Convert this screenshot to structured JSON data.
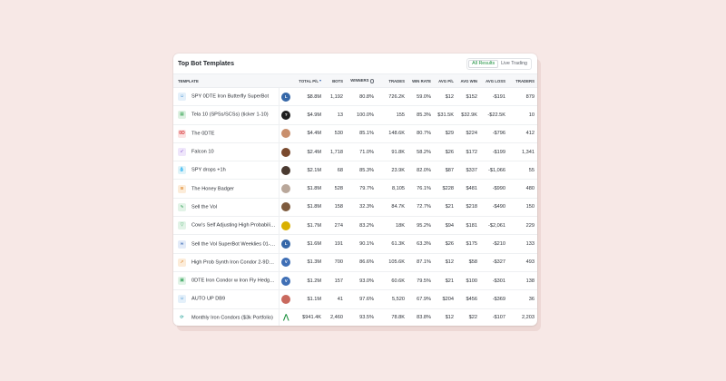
{
  "card": {
    "title": "Top Bot Templates",
    "toggle": {
      "all_results": "All Results",
      "live_trading": "Live Trading"
    }
  },
  "columns": {
    "template": "TEMPLATE",
    "total_pl": "TOTAL P/L",
    "bots": "BOTS",
    "winners": "WINNERS",
    "trades": "TRADES",
    "win_rate": "WIN RATE",
    "avg_pl": "AVG P/L",
    "avg_win": "AVG WIN",
    "avg_loss": "AVG LOSS",
    "traders": "TRADERS"
  },
  "colors": {
    "accent_green": "#1a8f3c",
    "sort_blue": "#2f5fb0"
  },
  "rows": [
    {
      "name": "SPY 0DTE Iron Butterfly SuperBot",
      "icon": "robot-icon",
      "icon_color": "#3f8ecf",
      "icon_bg": "#e4f0fa",
      "avatar": "letter-avatar",
      "avatar_letter": "L",
      "avatar_color": "#3567a8",
      "total_pl": "$8.8M",
      "bots": "1,192",
      "winners": "80.8%",
      "trades": "726.2K",
      "win_rate": "59.0%",
      "avg_pl": "$12",
      "avg_win": "$152",
      "avg_loss": "-$191",
      "traders": "879"
    },
    {
      "name": "Tela 10 (SPSs/SCSs) (ticker 1-10)",
      "icon": "calendar-icon",
      "icon_color": "#3fa75a",
      "icon_bg": "#dff1e3",
      "avatar": "question-avatar",
      "avatar_letter": "?",
      "avatar_color": "#1e1e1e",
      "total_pl": "$4.9M",
      "bots": "13",
      "winners": "100.0%",
      "trades": "155",
      "win_rate": "85.3%",
      "avg_pl": "$31.5K",
      "avg_win": "$32.9K",
      "avg_loss": "-$22.5K",
      "traders": "10"
    },
    {
      "name": "The 0DTE",
      "icon": "zero-dte-icon",
      "icon_color": "#d8393a",
      "icon_bg": "#fbe3e3",
      "avatar": "photo-avatar",
      "avatar_letter": "",
      "avatar_color": "#c98f6d",
      "total_pl": "$4.4M",
      "bots": "530",
      "winners": "85.1%",
      "trades": "148.6K",
      "win_rate": "80.7%",
      "avg_pl": "$29",
      "avg_win": "$224",
      "avg_loss": "-$796",
      "traders": "412"
    },
    {
      "name": "Falcon 10",
      "icon": "falcon-icon",
      "icon_color": "#8a57d6",
      "icon_bg": "#efe6fb",
      "avatar": "photo-avatar",
      "avatar_letter": "",
      "avatar_color": "#7a4a2e",
      "total_pl": "$2.4M",
      "bots": "1,718",
      "winners": "71.0%",
      "trades": "91.8K",
      "win_rate": "58.2%",
      "avg_pl": "$26",
      "avg_win": "$172",
      "avg_loss": "-$199",
      "traders": "1,341"
    },
    {
      "name": "SPY drops +1h",
      "icon": "drop-icon",
      "icon_color": "#27a7c9",
      "icon_bg": "#e0f3f8",
      "avatar": "photo-avatar",
      "avatar_letter": "",
      "avatar_color": "#4a3a30",
      "total_pl": "$2.1M",
      "bots": "68",
      "winners": "85.3%",
      "trades": "23.9K",
      "win_rate": "82.0%",
      "avg_pl": "$87",
      "avg_win": "$337",
      "avg_loss": "-$1,066",
      "traders": "55"
    },
    {
      "name": "The Honey Badger",
      "icon": "badger-icon",
      "icon_color": "#e08a2e",
      "icon_bg": "#fcecd9",
      "avatar": "photo-avatar",
      "avatar_letter": "",
      "avatar_color": "#b9a79a",
      "total_pl": "$1.8M",
      "bots": "528",
      "winners": "79.7%",
      "trades": "8,105",
      "win_rate": "76.1%",
      "avg_pl": "$228",
      "avg_win": "$481",
      "avg_loss": "-$990",
      "traders": "480"
    },
    {
      "name": "Sell the Vol",
      "icon": "pulse-icon",
      "icon_color": "#34a35a",
      "icon_bg": "#e2f3e7",
      "avatar": "photo-avatar",
      "avatar_letter": "",
      "avatar_color": "#7d5a3d",
      "total_pl": "$1.8M",
      "bots": "158",
      "winners": "32.3%",
      "trades": "84.7K",
      "win_rate": "72.7%",
      "avg_pl": "$21",
      "avg_win": "$218",
      "avg_loss": "-$490",
      "traders": "150"
    },
    {
      "name": "Cow's Self Adjusting High Probability...",
      "icon": "cow-icon",
      "icon_color": "#34a35a",
      "icon_bg": "#e2f3e7",
      "avatar": "photo-avatar",
      "avatar_letter": "",
      "avatar_color": "#d9b000",
      "total_pl": "$1.7M",
      "bots": "274",
      "winners": "83.2%",
      "trades": "18K",
      "win_rate": "95.2%",
      "avg_pl": "$94",
      "avg_win": "$181",
      "avg_loss": "-$2,061",
      "traders": "229"
    },
    {
      "name": "Sell the Vol SuperBot Weeklies 01-03...",
      "icon": "infinity-icon",
      "icon_color": "#2f5fb0",
      "icon_bg": "#e3ebf8",
      "avatar": "letter-avatar",
      "avatar_letter": "L",
      "avatar_color": "#3567a8",
      "total_pl": "$1.6M",
      "bots": "191",
      "winners": "90.1%",
      "trades": "61.3K",
      "win_rate": "63.3%",
      "avg_pl": "$26",
      "avg_win": "$175",
      "avg_loss": "-$210",
      "traders": "133"
    },
    {
      "name": "High Prob Synth Iron Condor 2-9DTE",
      "icon": "rocket-icon",
      "icon_color": "#e08a2e",
      "icon_bg": "#fcecd9",
      "avatar": "letter-avatar",
      "avatar_letter": "V",
      "avatar_color": "#3f6fb5",
      "total_pl": "$1.3M",
      "bots": "700",
      "winners": "86.6%",
      "trades": "105.6K",
      "win_rate": "87.1%",
      "avg_pl": "$12",
      "avg_win": "$58",
      "avg_loss": "-$327",
      "traders": "493"
    },
    {
      "name": "0DTE Iron Condor w Iron Fly Hedging",
      "icon": "cash-icon",
      "icon_color": "#34a35a",
      "icon_bg": "#e2f3e7",
      "avatar": "letter-avatar",
      "avatar_letter": "V",
      "avatar_color": "#3f6fb5",
      "total_pl": "$1.2M",
      "bots": "157",
      "winners": "93.0%",
      "trades": "60.6K",
      "win_rate": "79.5%",
      "avg_pl": "$21",
      "avg_win": "$100",
      "avg_loss": "-$301",
      "traders": "138"
    },
    {
      "name": "AUTO UP DB9",
      "icon": "robot-icon",
      "icon_color": "#3f8ecf",
      "icon_bg": "#e4f0fa",
      "avatar": "photo-avatar",
      "avatar_letter": "",
      "avatar_color": "#c9695e",
      "total_pl": "$1.1M",
      "bots": "41",
      "winners": "97.6%",
      "trades": "5,520",
      "win_rate": "67.9%",
      "avg_pl": "$204",
      "avg_win": "$456",
      "avg_loss": "-$369",
      "traders": "36"
    },
    {
      "name": "Monthly Iron Condors ($3k Portfolio)",
      "icon": "cycle-icon",
      "icon_color": "#2aa59b",
      "icon_bg": "#ffffff",
      "avatar": "logo-avatar",
      "avatar_letter": "",
      "avatar_color": "#1a8f3c",
      "total_pl": "$941.4K",
      "bots": "2,460",
      "winners": "93.5%",
      "trades": "78.8K",
      "win_rate": "83.8%",
      "avg_pl": "$12",
      "avg_win": "$22",
      "avg_loss": "-$107",
      "traders": "2,203"
    }
  ]
}
